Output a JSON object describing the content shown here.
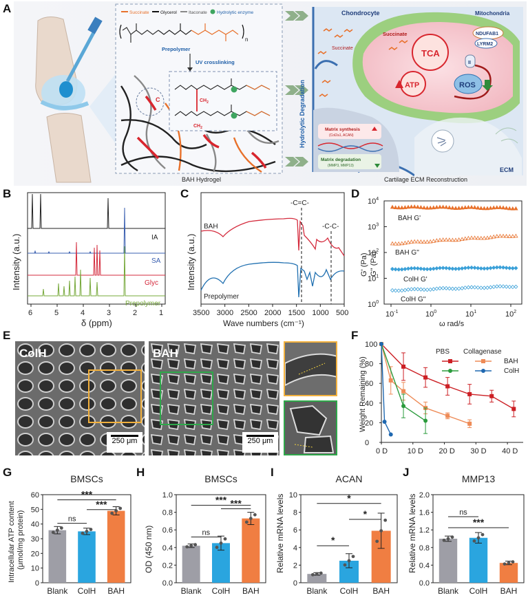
{
  "panel_labels": {
    "A": "A",
    "B": "B",
    "C": "C",
    "D": "D",
    "E": "E",
    "F": "F",
    "G": "G",
    "H": "H",
    "I": "I",
    "J": "J"
  },
  "panelA": {
    "legend": {
      "succinate": "Succinate",
      "glycerol": "Glycerol",
      "itaconate": "Itaconate",
      "enzyme": "Hydrolytic enzyme"
    },
    "prepolymer": "Prepolymer",
    "n": "n",
    "uv": "UV crosslinking",
    "c_label": "C",
    "ch2": "CH",
    "ch2_sub": "2",
    "caption_left": "BAH Hydrogel",
    "hydrolytic": "Hydrolytic Degradation",
    "chondrocyte": "Chondrocyte",
    "mitochondria": "Mitochondria",
    "succinate1": "Succinate",
    "succinate2": "Succinate",
    "tca": "TCA",
    "ndufab1": "NDUFAB1",
    "lyrm2": "LYRM2",
    "complex_ii": "II",
    "atp": "ATP",
    "ros": "ROS",
    "ecm": "ECM",
    "synthesis": "Matrix synthesis",
    "synthesis_sub": "(Col2a1, ACAN)",
    "degradation": "Matrix degradation",
    "degradation_sub": "(MMP3, MMP13)",
    "caption_right": "Cartilage ECM Reconstruction",
    "colors": {
      "orange": "#e8712b",
      "blue": "#1f5fa8",
      "red": "#d8262e",
      "green": "#2e8b3a"
    }
  },
  "panelB": {
    "ylabel": "Intensity (a.u.)",
    "xlabel": "δ (ppm)",
    "ticks": [
      "6",
      "5",
      "4",
      "3",
      "2",
      "1"
    ],
    "traces": [
      {
        "name": "IA",
        "color": "#222222"
      },
      {
        "name": "SA",
        "color": "#3a5fb0"
      },
      {
        "name": "Glyc",
        "color": "#d42a3c"
      },
      {
        "name": "Prepolymer",
        "color": "#76a83a"
      }
    ]
  },
  "panelC": {
    "ylabel": "Intensity (a.u.)",
    "xlabel": "Wave numbers (cm⁻¹)",
    "ticks": [
      "3500",
      "3000",
      "2500",
      "2000",
      "1500",
      "1000",
      "500"
    ],
    "cc_double": "-C=C-",
    "cc_single": "-C-C-",
    "bah": "BAH",
    "prepolymer": "Prepolymer"
  },
  "panelD": {
    "ylabel1": "G' (Pa)",
    "ylabel2": "G'' (Pa)",
    "xlabel": "ω rad/s",
    "yticks": [
      "10",
      "10",
      "10",
      "10",
      "10"
    ],
    "yexp": [
      "4",
      "3",
      "2",
      "1",
      "0"
    ],
    "xticks": [
      "10",
      "10",
      "10",
      "10"
    ],
    "xexp": [
      "-1",
      "0",
      "1",
      "2"
    ],
    "series": [
      {
        "name": "BAH G'",
        "color": "#e8712b"
      },
      {
        "name": "BAH G''",
        "color": "#e8712b"
      },
      {
        "name": "ColH G'",
        "color": "#3aa0d8"
      },
      {
        "name": "ColH G''",
        "color": "#3aa0d8"
      }
    ]
  },
  "panelE": {
    "colh": "ColH",
    "bah": "BAH",
    "scale1": "250 μm",
    "scale2": "250 μm"
  },
  "chart_data": [
    {
      "panel": "F",
      "type": "line",
      "ylabel": "Weight Remaining (%)",
      "ylim": [
        0,
        100
      ],
      "yticks": [
        "0",
        "20",
        "40",
        "60",
        "80",
        "100"
      ],
      "xticks": [
        "0 D",
        "10 D",
        "20 D",
        "30 D",
        "40 D"
      ],
      "legend_pbs": "PBS",
      "legend_collagenase": "Collagenase",
      "legend_bah": "BAH",
      "legend_colh": "ColH",
      "series": [
        {
          "name": "BAH PBS",
          "color": "#cc1f24",
          "x": [
            0,
            7,
            14,
            21,
            28,
            35,
            42
          ],
          "y": [
            100,
            77,
            66,
            57,
            49,
            47,
            34
          ],
          "err": [
            0,
            14,
            10,
            9,
            10,
            6,
            8
          ]
        },
        {
          "name": "BAH Collagenase",
          "color": "#ee8b57",
          "x": [
            0,
            3,
            7,
            14,
            21,
            28
          ],
          "y": [
            100,
            63,
            52,
            35,
            27,
            19
          ],
          "err": [
            0,
            14,
            9,
            6,
            3,
            4
          ]
        },
        {
          "name": "ColH PBS",
          "color": "#2a9b3c",
          "x": [
            0,
            7,
            14
          ],
          "y": [
            100,
            37,
            22
          ],
          "err": [
            0,
            12,
            13
          ]
        },
        {
          "name": "ColH Collagenase",
          "color": "#1f68b0",
          "x": [
            0,
            1,
            3
          ],
          "y": [
            100,
            21,
            8
          ],
          "err": [
            0,
            0,
            0
          ]
        }
      ]
    },
    {
      "panel": "G",
      "type": "bar",
      "title": "BMSCs",
      "ylabel": "Intracellular ATP content",
      "ylabel2": "(μmol/mg protein)",
      "categories": [
        "Blank",
        "ColH",
        "BAH"
      ],
      "values": [
        35.8,
        35.0,
        49.0
      ],
      "err": [
        2.5,
        2.2,
        2.8
      ],
      "ylim": [
        0,
        60
      ],
      "yticks": [
        "0",
        "10",
        "20",
        "30",
        "40",
        "50",
        "60"
      ],
      "sig": [
        "ns",
        "***",
        "***"
      ]
    },
    {
      "panel": "H",
      "type": "bar",
      "title": "BMSCs",
      "ylabel": "OD (450 nm)",
      "categories": [
        "Blank",
        "ColH",
        "BAH"
      ],
      "values": [
        0.42,
        0.45,
        0.73
      ],
      "err": [
        0.02,
        0.08,
        0.07
      ],
      "ylim": [
        0,
        1.0
      ],
      "yticks": [
        "0.0",
        "0.2",
        "0.4",
        "0.6",
        "0.8",
        "1.0"
      ],
      "sig": [
        "ns",
        "***",
        "***"
      ]
    },
    {
      "panel": "I",
      "type": "bar",
      "title": "ACAN",
      "ylabel": "Relative mRNA levels",
      "categories": [
        "Blank",
        "ColH",
        "BAH"
      ],
      "values": [
        1.0,
        2.5,
        5.9
      ],
      "err": [
        0.15,
        0.8,
        2.0
      ],
      "ylim": [
        0,
        10
      ],
      "yticks": [
        "0",
        "2",
        "4",
        "6",
        "8",
        "10"
      ],
      "sig": [
        "*",
        "*",
        "*"
      ]
    },
    {
      "panel": "J",
      "type": "bar",
      "title": "MMP13",
      "ylabel": "Relative mRNA levels",
      "categories": [
        "Blank",
        "ColH",
        "BAH"
      ],
      "values": [
        1.0,
        1.02,
        0.45
      ],
      "err": [
        0.06,
        0.12,
        0.04
      ],
      "ylim": [
        0,
        2.0
      ],
      "yticks": [
        "0.0",
        "0.4",
        "0.8",
        "1.2",
        "1.6",
        "2.0"
      ],
      "sig": [
        "ns",
        "***"
      ]
    }
  ],
  "bar_colors": [
    "#9e9ea6",
    "#2aa5df",
    "#f07e42"
  ]
}
